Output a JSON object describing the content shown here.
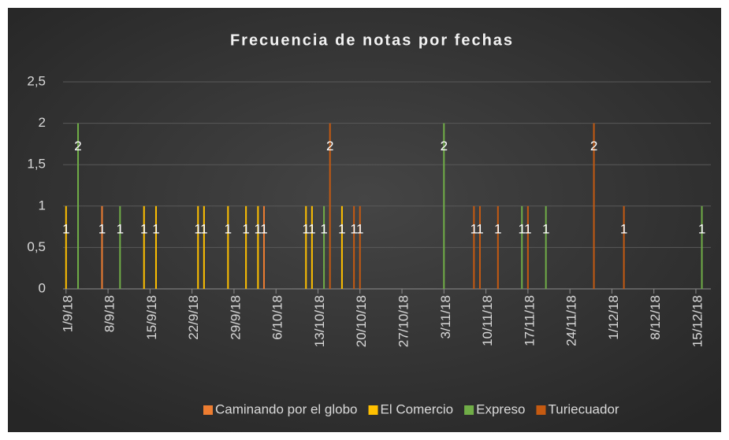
{
  "chart_data": {
    "type": "bar",
    "title": "Frecuencia de notas por fechas",
    "xlim": [
      "1/9/18",
      "17/12/18"
    ],
    "xticks": [
      "1/9/18",
      "8/9/18",
      "15/9/18",
      "22/9/18",
      "29/9/18",
      "6/10/18",
      "13/10/18",
      "20/10/18",
      "27/10/18",
      "3/11/18",
      "10/11/18",
      "17/11/18",
      "24/11/18",
      "1/12/18",
      "8/12/18",
      "15/12/18"
    ],
    "ylim": [
      0,
      2.5
    ],
    "yticks": [
      0,
      {
        "value": 0.5,
        "label": "0,5"
      },
      1,
      {
        "value": 1.5,
        "label": "1,5"
      },
      2,
      {
        "value": 2.5,
        "label": "2,5"
      }
    ],
    "grid": true,
    "legend": "bottom",
    "series": [
      {
        "name": "Caminando por el globo",
        "color": "#ED7D31",
        "x": [
          "7/9/18",
          "4/10/18"
        ],
        "values": [
          1,
          1
        ]
      },
      {
        "name": "El Comercio",
        "color": "#FFC000",
        "x": [
          "1/9/18",
          "14/9/18",
          "16/9/18",
          "23/9/18",
          "24/9/18",
          "28/9/18",
          "1/10/18",
          "3/10/18",
          "11/10/18",
          "12/10/18",
          "17/10/18"
        ],
        "values": [
          1,
          1,
          1,
          1,
          1,
          1,
          1,
          1,
          1,
          1,
          1
        ]
      },
      {
        "name": "Expreso",
        "color": "#70AD47",
        "x": [
          "3/9/18",
          "10/9/18",
          "14/10/18",
          "3/11/18",
          "16/11/18",
          "20/11/18",
          "16/12/18"
        ],
        "values": [
          2,
          1,
          1,
          2,
          1,
          1,
          1
        ]
      },
      {
        "name": "Turiecuador",
        "color": "#C55A11",
        "x": [
          "15/10/18",
          "19/10/18",
          "20/10/18",
          "8/11/18",
          "9/11/18",
          "12/11/18",
          "17/11/18",
          "28/11/18",
          "3/12/18"
        ],
        "values": [
          2,
          1,
          1,
          1,
          1,
          1,
          1,
          2,
          1
        ]
      }
    ]
  }
}
